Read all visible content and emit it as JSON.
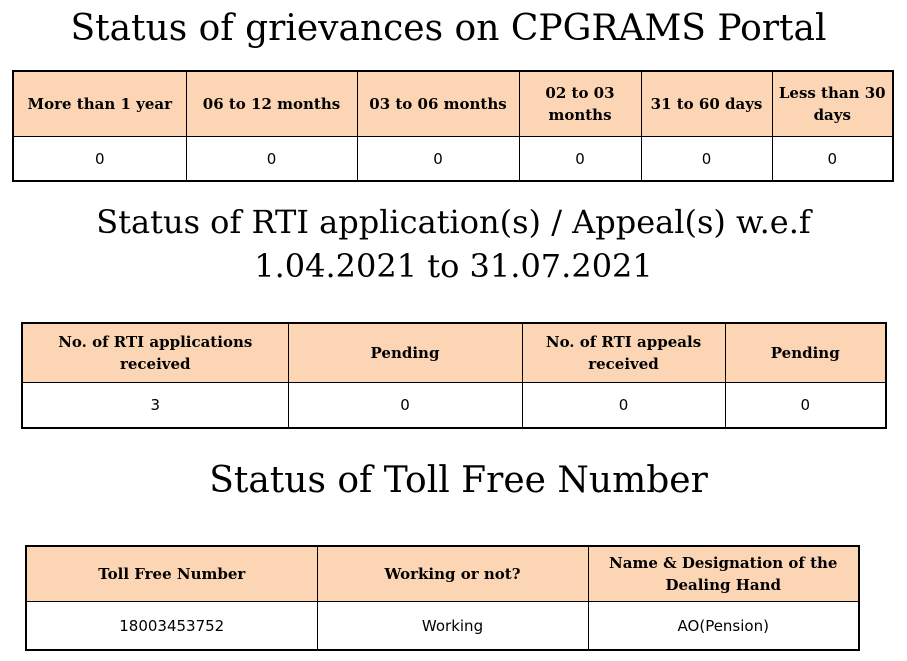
{
  "grievances": {
    "title": "Status of grievances on CPGRAMS Portal",
    "headers": [
      "More than 1 year",
      "06 to 12 months",
      "03 to 06 months",
      "02 to 03 months",
      "31 to 60 days",
      "Less than 30 days"
    ],
    "values": [
      "0",
      "0",
      "0",
      "0",
      "0",
      "0"
    ]
  },
  "rti": {
    "title_line1": "Status of RTI application(s) / Appeal(s) w.e.f",
    "title_line2": "1.04.2021 to 31.07.2021",
    "headers": [
      "No. of RTI applications received",
      "Pending",
      "No. of RTI appeals received",
      "Pending"
    ],
    "values": [
      "3",
      "0",
      "0",
      "0"
    ]
  },
  "tollfree": {
    "title": "Status of Toll Free Number",
    "headers": [
      "Toll Free Number",
      "Working or not?",
      "Name & Designation of the Dealing Hand"
    ],
    "values": [
      "18003453752",
      "Working",
      "AO(Pension)"
    ]
  },
  "colors": {
    "header_fill": "#fbd5b4",
    "border": "#000000"
  }
}
